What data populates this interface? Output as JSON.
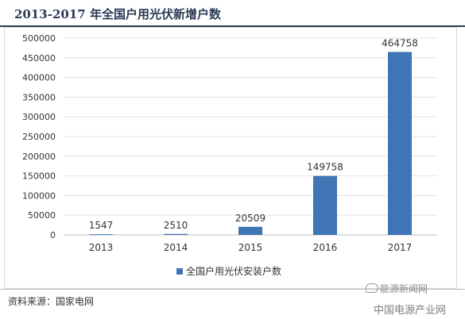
{
  "header": {
    "title": "2013-2017 年全国户用光伏新增户数"
  },
  "chart_data": {
    "type": "bar",
    "categories": [
      "2013",
      "2014",
      "2015",
      "2016",
      "2017"
    ],
    "series": [
      {
        "name": "全国户用光伏安装户数",
        "values": [
          1547,
          2510,
          20509,
          149758,
          464758
        ]
      }
    ],
    "data_labels": [
      "1547",
      "2510",
      "20509",
      "149758",
      "464758"
    ],
    "ylim": [
      0,
      500000
    ],
    "yticks": [
      0,
      50000,
      100000,
      150000,
      200000,
      250000,
      300000,
      350000,
      400000,
      450000,
      500000
    ],
    "ytick_labels": [
      "0",
      "50000",
      "100000",
      "150000",
      "200000",
      "250000",
      "300000",
      "350000",
      "400000",
      "450000",
      "500000"
    ],
    "grid": true,
    "legend_position": "bottom",
    "bar_color": "#3f74b5"
  },
  "footer": {
    "source": "资料来源：国家电网",
    "watermark_1": "能源新闻网",
    "watermark_2": "中国电源产业网"
  }
}
